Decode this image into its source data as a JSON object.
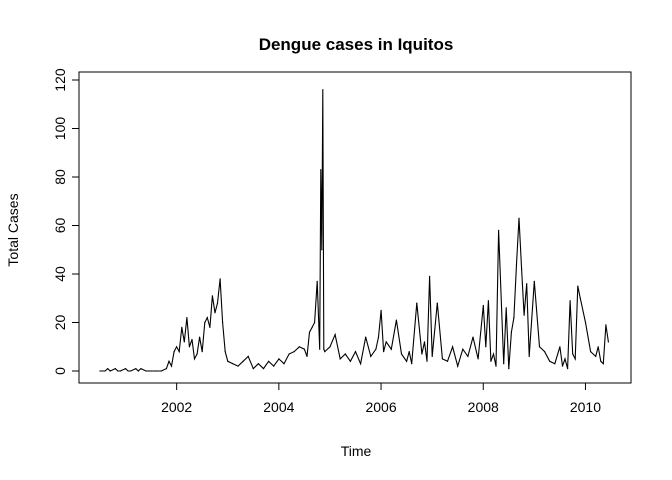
{
  "chart_data": {
    "type": "line",
    "title": "Dengue cases in Iquitos",
    "xlabel": "Time",
    "ylabel": "Total Cases",
    "xlim": [
      2000.5,
      2010.5
    ],
    "ylim": [
      0,
      120
    ],
    "x_ticks": [
      2002,
      2004,
      2006,
      2008,
      2010
    ],
    "x_tick_labels": [
      "2002",
      "2004",
      "2006",
      "2008",
      "2010"
    ],
    "y_ticks": [
      0,
      20,
      40,
      60,
      80,
      100,
      120
    ],
    "y_tick_labels": [
      "0",
      "20",
      "40",
      "60",
      "80",
      "100",
      "120"
    ],
    "grid": false,
    "legend": "none",
    "line_color": "#000000",
    "series": [
      {
        "x": [
          2000.5,
          2000.6,
          2000.65,
          2000.7,
          2000.8,
          2000.85,
          2000.9,
          2001.0,
          2001.05,
          2001.1,
          2001.2,
          2001.25,
          2001.3,
          2001.4,
          2001.45,
          2001.5,
          2001.6,
          2001.7,
          2001.8,
          2001.85,
          2001.9,
          2001.95,
          2002.0,
          2002.05,
          2002.1,
          2002.15,
          2002.2,
          2002.25,
          2002.3,
          2002.35,
          2002.4,
          2002.45,
          2002.5,
          2002.55,
          2002.6,
          2002.65,
          2002.7,
          2002.75,
          2002.8,
          2002.85,
          2002.9,
          2002.95,
          2003.0,
          2003.1,
          2003.2,
          2003.3,
          2003.4,
          2003.5,
          2003.6,
          2003.7,
          2003.8,
          2003.9,
          2004.0,
          2004.1,
          2004.2,
          2004.3,
          2004.4,
          2004.5,
          2004.55,
          2004.6,
          2004.65,
          2004.7,
          2004.75,
          2004.8,
          2004.82,
          2004.84,
          2004.86,
          2004.88,
          2004.9,
          2005.0,
          2005.1,
          2005.2,
          2005.3,
          2005.4,
          2005.5,
          2005.6,
          2005.7,
          2005.8,
          2005.9,
          2005.95,
          2006.0,
          2006.05,
          2006.1,
          2006.2,
          2006.3,
          2006.4,
          2006.5,
          2006.55,
          2006.6,
          2006.7,
          2006.8,
          2006.85,
          2006.9,
          2006.95,
          2007.0,
          2007.1,
          2007.2,
          2007.3,
          2007.4,
          2007.5,
          2007.6,
          2007.7,
          2007.8,
          2007.9,
          2008.0,
          2008.05,
          2008.1,
          2008.15,
          2008.2,
          2008.25,
          2008.3,
          2008.4,
          2008.45,
          2008.5,
          2008.55,
          2008.6,
          2008.65,
          2008.7,
          2008.75,
          2008.8,
          2008.85,
          2008.9,
          2009.0,
          2009.1,
          2009.2,
          2009.3,
          2009.4,
          2009.5,
          2009.55,
          2009.6,
          2009.65,
          2009.7,
          2009.75,
          2009.8,
          2009.85,
          2009.9,
          2010.0,
          2010.1,
          2010.2,
          2010.25,
          2010.3,
          2010.35,
          2010.4,
          2010.45
        ],
        "y": [
          0,
          0,
          1,
          0,
          1,
          0,
          0,
          1,
          0,
          0,
          1,
          0,
          1,
          0,
          0,
          0,
          0,
          0,
          1,
          4,
          2,
          8,
          10,
          8,
          18,
          12,
          22,
          10,
          13,
          5,
          7,
          14,
          8,
          20,
          22,
          18,
          31,
          24,
          28,
          38,
          20,
          8,
          4,
          3,
          2,
          4,
          6,
          1,
          3,
          1,
          4,
          2,
          5,
          3,
          7,
          8,
          10,
          9,
          6,
          16,
          18,
          20,
          37,
          9,
          83,
          50,
          116,
          9,
          8,
          10,
          15,
          5,
          7,
          4,
          8,
          3,
          14,
          6,
          9,
          14,
          25,
          8,
          12,
          9,
          21,
          7,
          4,
          8,
          3,
          28,
          7,
          12,
          4,
          39,
          6,
          28,
          5,
          4,
          10,
          2,
          9,
          6,
          14,
          5,
          27,
          10,
          29,
          4,
          7,
          2,
          58,
          3,
          26,
          1,
          16,
          22,
          44,
          63,
          42,
          23,
          36,
          6,
          37,
          10,
          8,
          4,
          3,
          10,
          2,
          5,
          1,
          29,
          7,
          5,
          35,
          30,
          20,
          8,
          6,
          10,
          4,
          3,
          19,
          12
        ]
      }
    ]
  }
}
